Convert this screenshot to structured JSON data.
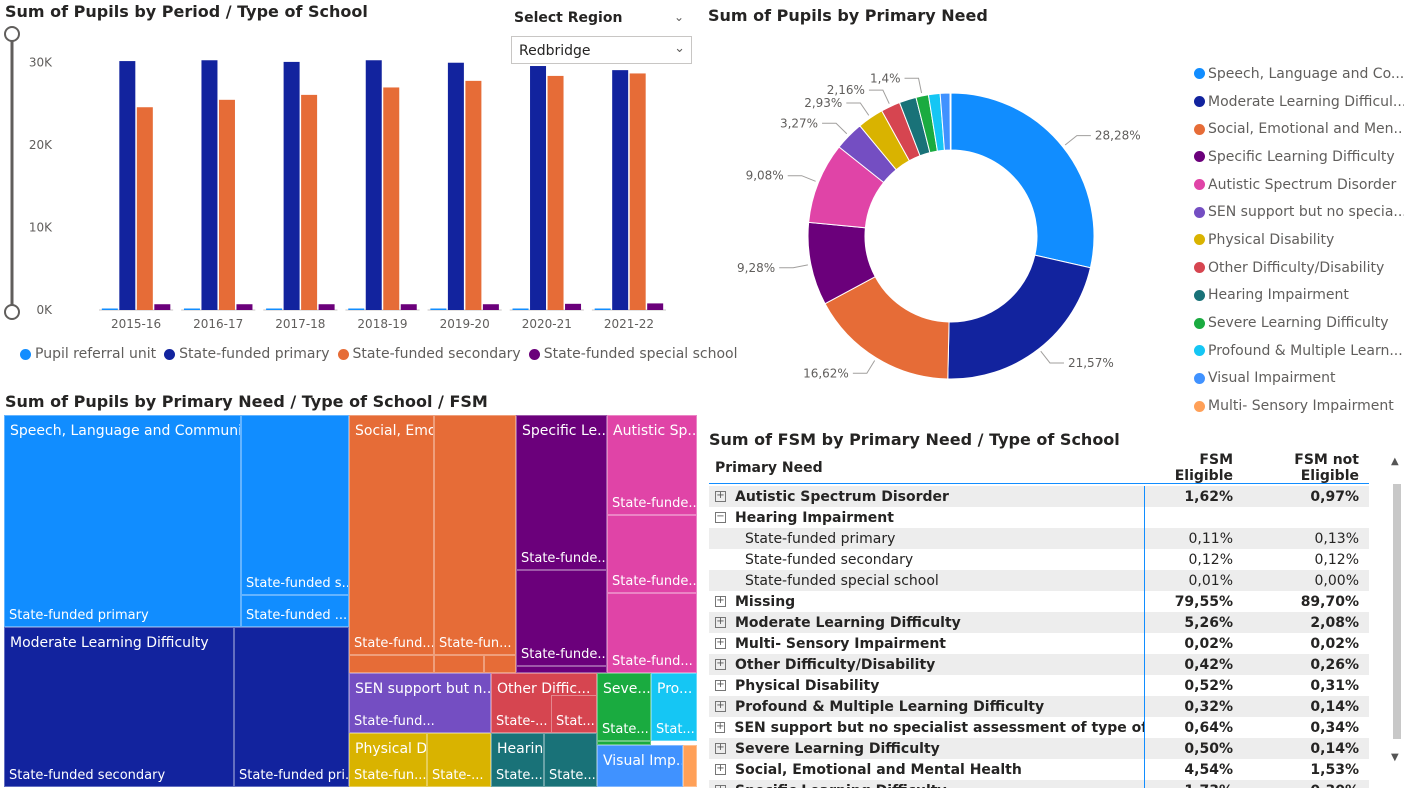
{
  "bar_panel": {
    "title": "Sum of Pupils by Period / Type of School",
    "legend_items": [
      "Pupil referral unit",
      "State-funded primary",
      "State-funded secondary",
      "State-funded special school"
    ]
  },
  "slicer": {
    "title": "Select Region",
    "selected": "Redbridge"
  },
  "pie_panel": {
    "title": "Sum of Pupils by Primary Need"
  },
  "treemap_panel": {
    "title": "Sum of Pupils by Primary Need / Type of School / FSM",
    "tiles": [
      {
        "label": "Speech, Language and Communications needs",
        "sub": "State-funded primary"
      },
      {
        "label": "",
        "sub": "State-funded s..."
      },
      {
        "label": "",
        "sub": "State-funded ..."
      },
      {
        "label": "Moderate Learning Difficulty",
        "sub": "State-funded secondary"
      },
      {
        "label": "",
        "sub": "State-funded pri..."
      },
      {
        "label": "Social, Emotional and ...",
        "sub": "State-fund..."
      },
      {
        "label": "",
        "sub": "State-fun..."
      },
      {
        "label": "Specific Le...",
        "sub": "State-funde..."
      },
      {
        "label": "",
        "sub": "State-funde..."
      },
      {
        "label": "Autistic Sp...",
        "sub": "State-funde..."
      },
      {
        "label": "",
        "sub": "State-funde..."
      },
      {
        "label": "",
        "sub": "State-fund..."
      },
      {
        "label": "SEN support but n...",
        "sub": "State-fund..."
      },
      {
        "label": "Other Diffic...",
        "sub": "State-..."
      },
      {
        "label": "",
        "sub": "Stat..."
      },
      {
        "label": "Seve...",
        "sub": "State..."
      },
      {
        "label": "Pro...",
        "sub": "Stat..."
      },
      {
        "label": "Physical Disability",
        "sub": "State-fun..."
      },
      {
        "label": "",
        "sub": "State-..."
      },
      {
        "label": "Hearing Imp...",
        "sub": "State..."
      },
      {
        "label": "",
        "sub": "State..."
      },
      {
        "label": "Visual Imp...",
        "sub": ""
      }
    ]
  },
  "matrix_panel": {
    "title": "Sum of FSM by Primary Need / Type of School",
    "headers": [
      "Primary Need",
      "FSM Eligible",
      "FSM not Eligible"
    ],
    "rows": [
      {
        "kind": "parent",
        "toggle": "+",
        "need": "Autistic Spectrum Disorder",
        "eligible": "1,62%",
        "not_eligible": "0,97%"
      },
      {
        "kind": "parent",
        "toggle": "−",
        "need": "Hearing Impairment",
        "eligible": "",
        "not_eligible": ""
      },
      {
        "kind": "child",
        "toggle": "",
        "need": "State-funded primary",
        "eligible": "0,11%",
        "not_eligible": "0,13%"
      },
      {
        "kind": "child",
        "toggle": "",
        "need": "State-funded secondary",
        "eligible": "0,12%",
        "not_eligible": "0,12%"
      },
      {
        "kind": "child",
        "toggle": "",
        "need": "State-funded special school",
        "eligible": "0,01%",
        "not_eligible": "0,00%"
      },
      {
        "kind": "parent",
        "toggle": "+",
        "need": "Missing",
        "eligible": "79,55%",
        "not_eligible": "89,70%"
      },
      {
        "kind": "parent",
        "toggle": "+",
        "need": "Moderate Learning Difficulty",
        "eligible": "5,26%",
        "not_eligible": "2,08%"
      },
      {
        "kind": "parent",
        "toggle": "+",
        "need": "Multi- Sensory Impairment",
        "eligible": "0,02%",
        "not_eligible": "0,02%"
      },
      {
        "kind": "parent",
        "toggle": "+",
        "need": "Other Difficulty/Disability",
        "eligible": "0,42%",
        "not_eligible": "0,26%"
      },
      {
        "kind": "parent",
        "toggle": "+",
        "need": "Physical Disability",
        "eligible": "0,52%",
        "not_eligible": "0,31%"
      },
      {
        "kind": "parent",
        "toggle": "+",
        "need": "Profound & Multiple Learning Difficulty",
        "eligible": "0,32%",
        "not_eligible": "0,14%"
      },
      {
        "kind": "parent",
        "toggle": "+",
        "need": "SEN support but no specialist assessment of type of need",
        "eligible": "0,64%",
        "not_eligible": "0,34%"
      },
      {
        "kind": "parent",
        "toggle": "+",
        "need": "Severe Learning Difficulty",
        "eligible": "0,50%",
        "not_eligible": "0,14%"
      },
      {
        "kind": "parent",
        "toggle": "+",
        "need": "Social, Emotional and Mental Health",
        "eligible": "4,54%",
        "not_eligible": "1,53%"
      },
      {
        "kind": "parent",
        "toggle": "+",
        "need": "Specific Learning Difficulty",
        "eligible": "1,73%",
        "not_eligible": "0,30%"
      }
    ]
  },
  "chart_data": [
    {
      "type": "bar",
      "title": "Sum of Pupils by Period / Type of School",
      "categories": [
        "2015-16",
        "2016-17",
        "2017-18",
        "2018-19",
        "2019-20",
        "2020-21",
        "2021-22"
      ],
      "y_ticks": [
        "0K",
        "10K",
        "20K",
        "30K"
      ],
      "ylim": [
        0,
        33000
      ],
      "legend_position": "bottom",
      "series": [
        {
          "name": "Pupil referral unit",
          "color": "#118dff",
          "values": [
            150,
            150,
            150,
            150,
            150,
            150,
            150
          ]
        },
        {
          "name": "State-funded primary",
          "color": "#12239e",
          "values": [
            30200,
            30300,
            30100,
            30300,
            30000,
            29600,
            29100
          ]
        },
        {
          "name": "State-funded secondary",
          "color": "#e66c37",
          "values": [
            24600,
            25500,
            26100,
            27000,
            27800,
            28400,
            28700
          ]
        },
        {
          "name": "State-funded special school",
          "color": "#6b007b",
          "values": [
            700,
            700,
            700,
            700,
            700,
            750,
            800
          ]
        }
      ]
    },
    {
      "type": "pie",
      "title": "Sum of Pupils by Primary Need",
      "legend_position": "right",
      "labels": [
        "Speech, Language and Co...",
        "Moderate Learning Difficul...",
        "Social, Emotional and Men...",
        "Specific Learning Difficulty",
        "Autistic Spectrum Disorder",
        "SEN support but no specia...",
        "Physical Disability",
        "Other Difficulty/Disability",
        "Hearing Impairment",
        "Severe Learning Difficulty",
        "Profound & Multiple Learn...",
        "Visual Impairment",
        "Multi- Sensory Impairment"
      ],
      "values": [
        28.28,
        21.57,
        16.62,
        9.28,
        9.08,
        3.27,
        2.93,
        2.16,
        1.9,
        1.4,
        1.3,
        1.1,
        0.1
      ],
      "data_labels": [
        "28,28%",
        "21,57%",
        "16,62%",
        "9,28%",
        "9,08%",
        "3,27%",
        "2,93%",
        "2,16%",
        "",
        "1,4%",
        "",
        "",
        ""
      ],
      "colors": [
        "#118dff",
        "#12239e",
        "#e66c37",
        "#6b007b",
        "#e044a7",
        "#744ec2",
        "#d9b300",
        "#d64550",
        "#197278",
        "#1aab40",
        "#15c6f4",
        "#4092ff",
        "#ffa058"
      ]
    }
  ]
}
